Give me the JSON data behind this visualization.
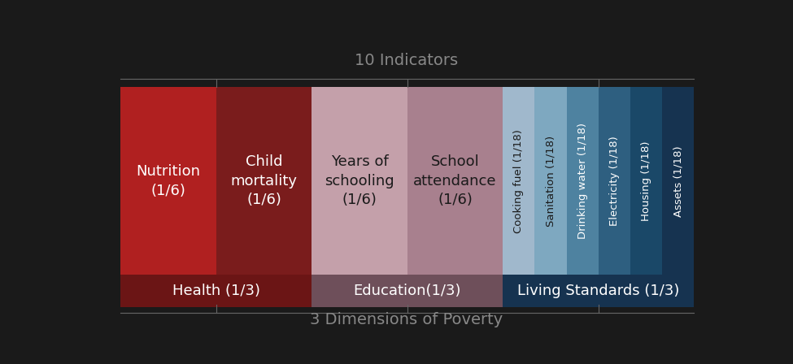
{
  "title_top": "10 Indicators",
  "title_bottom": "3 Dimensions of Poverty",
  "fig_bg": "#1a1a1a",
  "health": {
    "label": "Health (1/3)",
    "color_footer": "#6b1515",
    "sub": [
      {
        "label": "Nutrition\n(1/6)",
        "color": "#b02020",
        "text_color": "#ffffff"
      },
      {
        "label": "Child\nmortality\n(1/6)",
        "color": "#7a1c1c",
        "text_color": "#ffffff"
      }
    ]
  },
  "education": {
    "label": "Education(1/3)",
    "color_footer": "#6e4f5a",
    "sub": [
      {
        "label": "Years of\nschooling\n(1/6)",
        "color": "#c4a0aa",
        "text_color": "#1a1a1a"
      },
      {
        "label": "School\nattendance\n(1/6)",
        "color": "#a8808e",
        "text_color": "#1a1a1a"
      }
    ]
  },
  "living": {
    "label": "Living Standards (1/3)",
    "color_footer": "#163350",
    "sub": [
      {
        "label": "Cooking fuel (1/18)",
        "color": "#a0b8cc",
        "text_color": "#1a1a1a"
      },
      {
        "label": "Sanitation (1/18)",
        "color": "#7ea8c0",
        "text_color": "#1a1a1a"
      },
      {
        "label": "Drinking water (1/18)",
        "color": "#4e82a0",
        "text_color": "#ffffff"
      },
      {
        "label": "Electricity (1/18)",
        "color": "#2e5f80",
        "text_color": "#ffffff"
      },
      {
        "label": "Housing (1/18)",
        "color": "#1a4868",
        "text_color": "#ffffff"
      },
      {
        "label": "Assets (1/18)",
        "color": "#163350",
        "text_color": "#ffffff"
      }
    ]
  },
  "title_color": "#888888",
  "footer_text_color": "#ffffff",
  "bracket_color": "#666666"
}
